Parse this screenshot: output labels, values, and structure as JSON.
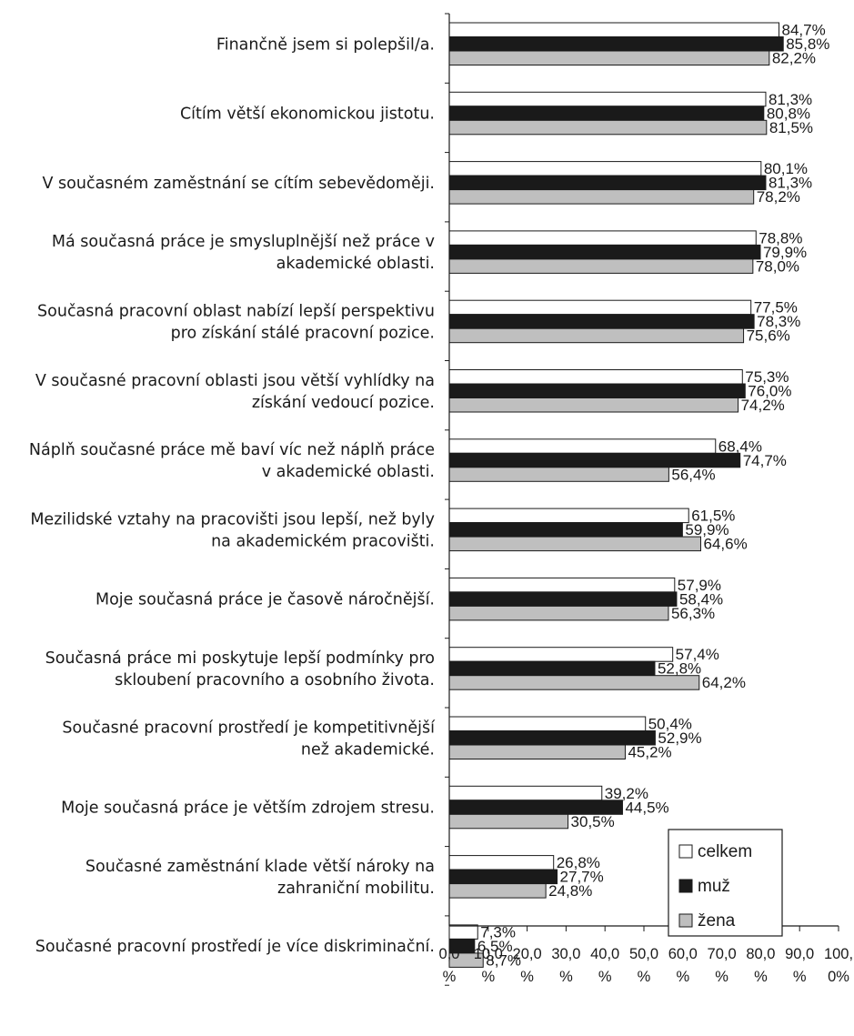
{
  "chart_data": {
    "type": "bar",
    "orientation": "horizontal",
    "categories": [
      [
        "Finančně jsem si polepšil/a."
      ],
      [
        "Cítím větší ekonomickou jistotu."
      ],
      [
        "V současném zaměstnání se cítím sebevědoměji."
      ],
      [
        "Má současná práce je smysluplnější než práce v",
        "akademické oblasti."
      ],
      [
        "Současná pracovní oblast nabízí lepší perspektivu",
        "pro získání stálé pracovní pozice."
      ],
      [
        "V současné pracovní oblasti jsou větší vyhlídky na",
        "získání vedoucí pozice."
      ],
      [
        "Náplň současné práce mě baví víc než náplň práce",
        "v akademické oblasti."
      ],
      [
        "Mezilidské vztahy na pracovišti jsou lepší, než byly",
        "na akademickém pracovišti."
      ],
      [
        "Moje současná práce je časově náročnější."
      ],
      [
        "Současná práce mi poskytuje lepší podmínky pro",
        "skloubení pracovního a osobního života."
      ],
      [
        "Současné pracovní prostředí je kompetitivnější",
        "než akademické."
      ],
      [
        "Moje současná práce je větším zdrojem stresu."
      ],
      [
        "Současné zaměstnání klade větší nároky na",
        "zahraniční mobilitu."
      ],
      [
        "Současné pracovní prostředí je více diskriminační."
      ]
    ],
    "series": [
      {
        "name": "celkem",
        "color": "#ffffff",
        "values": [
          84.7,
          81.3,
          80.1,
          78.8,
          77.5,
          75.3,
          68.4,
          61.5,
          57.9,
          57.4,
          50.4,
          39.2,
          26.8,
          7.3
        ],
        "labels": [
          "84,7%",
          "81,3%",
          "80,1%",
          "78,8%",
          "77,5%",
          "75,3%",
          "68,4%",
          "61,5%",
          "57,9%",
          "57,4%",
          "50,4%",
          "39,2%",
          "26,8%",
          "7,3%"
        ]
      },
      {
        "name": "muž",
        "color": "#1a1a1a",
        "values": [
          85.8,
          80.8,
          81.3,
          79.9,
          78.3,
          76.0,
          74.7,
          59.9,
          58.4,
          52.8,
          52.9,
          44.5,
          27.7,
          6.5
        ],
        "labels": [
          "85,8%",
          "80,8%",
          "81,3%",
          "79,9%",
          "78,3%",
          "76,0%",
          "74,7%",
          "59,9%",
          "58,4%",
          "52,8%",
          "52,9%",
          "44,5%",
          "27,7%",
          "6,5%"
        ]
      },
      {
        "name": "žena",
        "color": "#bfbfbf",
        "values": [
          82.2,
          81.5,
          78.2,
          78.0,
          75.6,
          74.2,
          56.4,
          64.6,
          56.3,
          64.2,
          45.2,
          30.5,
          24.8,
          8.7
        ],
        "labels": [
          "82,2%",
          "81,5%",
          "78,2%",
          "78,0%",
          "75,6%",
          "74,2%",
          "56,4%",
          "64,6%",
          "56,3%",
          "64,2%",
          "45,2%",
          "30,5%",
          "24,8%",
          "8,7%"
        ]
      }
    ],
    "xlim": [
      0,
      100
    ],
    "xticks": [
      [
        "0,0",
        "%"
      ],
      [
        "10,0",
        "%"
      ],
      [
        "20,0",
        "%"
      ],
      [
        "30,0",
        "%"
      ],
      [
        "40,0",
        "%"
      ],
      [
        "50,0",
        "%"
      ],
      [
        "60,0",
        "%"
      ],
      [
        "70,0",
        "%"
      ],
      [
        "80,0",
        "%"
      ],
      [
        "90,0",
        "%"
      ],
      [
        "100,",
        "0%"
      ]
    ],
    "legend_position": "bottom-right",
    "grid": false,
    "stroke_color": "#1a1a1a"
  }
}
